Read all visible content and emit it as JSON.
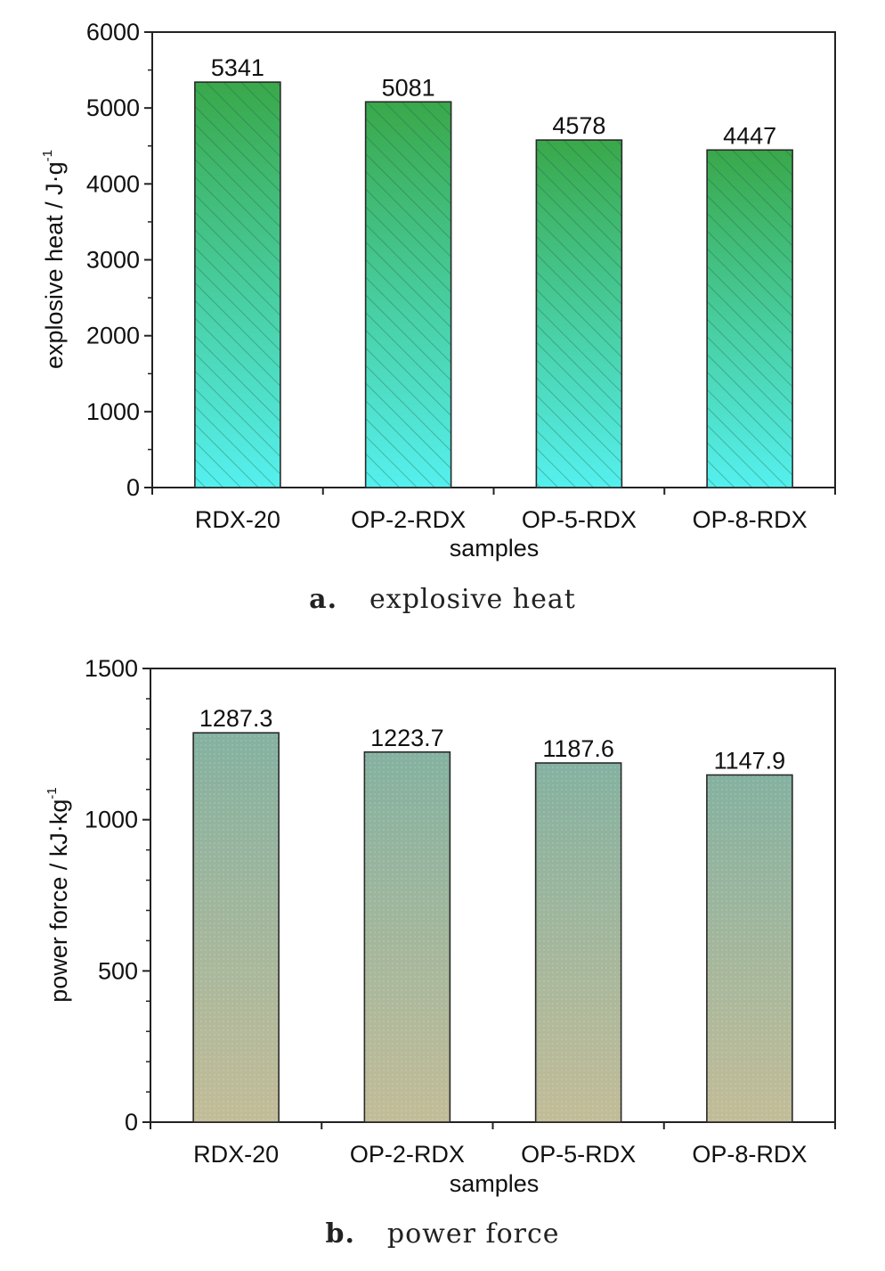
{
  "chart_data": [
    {
      "type": "bar",
      "categories": [
        "RDX-20",
        "OP-2-RDX",
        "OP-5-RDX",
        "OP-8-RDX"
      ],
      "values": [
        5341,
        5081,
        4578,
        4447
      ],
      "value_labels": [
        "5341",
        "5081",
        "4578",
        "4447"
      ],
      "xlabel": "samples",
      "ylabel": "explosive heat / J·g",
      "ylabel_sup": "-1",
      "ylim": [
        0,
        6000
      ],
      "yticks": [
        0,
        1000,
        2000,
        3000,
        4000,
        5000,
        6000
      ],
      "grid": false,
      "fill": "gradient green top to cyan bottom, diagonal hatch",
      "colors": {
        "top": "#3aa84a",
        "bottom": "#55f0ef"
      },
      "caption_letter": "a.",
      "caption_text": "explosive heat"
    },
    {
      "type": "bar",
      "categories": [
        "RDX-20",
        "OP-2-RDX",
        "OP-5-RDX",
        "OP-8-RDX"
      ],
      "values": [
        1287.3,
        1223.7,
        1187.6,
        1147.9
      ],
      "value_labels": [
        "1287.3",
        "1223.7",
        "1187.6",
        "1147.9"
      ],
      "xlabel": "samples",
      "ylabel": "power force / kJ·kg",
      "ylabel_sup": "-1",
      "ylim": [
        0,
        1500
      ],
      "yticks": [
        0,
        500,
        1000,
        1500
      ],
      "grid": false,
      "fill": "gradient teal top to khaki bottom",
      "colors": {
        "top": "#84b1a0",
        "bottom": "#c2bc98"
      },
      "caption_letter": "b.",
      "caption_text": "power force"
    }
  ]
}
